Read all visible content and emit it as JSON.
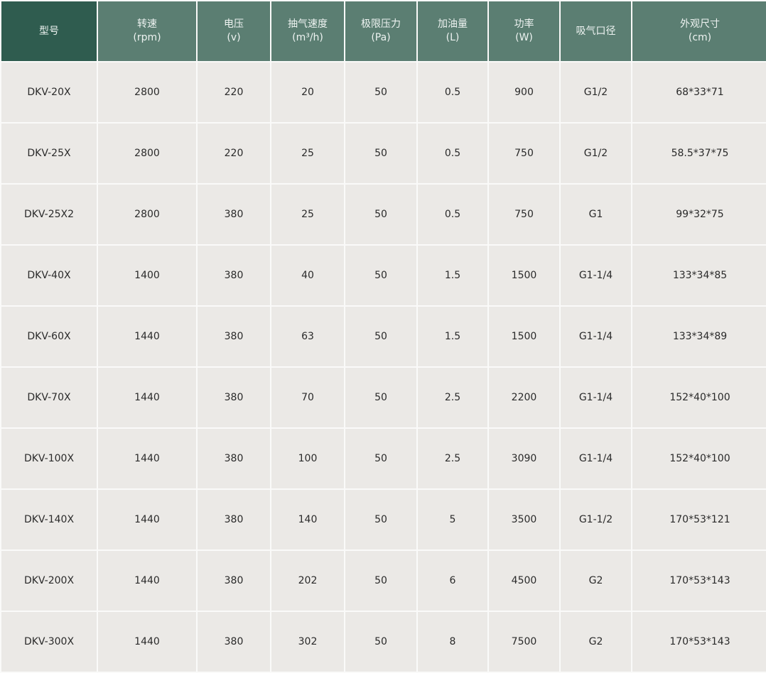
{
  "header_colors": {
    "model": "#2f5c4f",
    "others": "#5b7e72",
    "row_bg": "#ebe9e6"
  },
  "columns": [
    {
      "label": "型号",
      "unit": ""
    },
    {
      "label": "转速",
      "unit": "(rpm)"
    },
    {
      "label": "电压",
      "unit": "(v)"
    },
    {
      "label": "抽气速度",
      "unit": "(m³/h)"
    },
    {
      "label": "极限压力",
      "unit": "(Pa)"
    },
    {
      "label": "加油量",
      "unit": "(L)"
    },
    {
      "label": "功率",
      "unit": "(W)"
    },
    {
      "label": "吸气口径",
      "unit": ""
    },
    {
      "label": "外观尺寸",
      "unit": "(cm)"
    }
  ],
  "rows": [
    [
      "DKV-20X",
      "2800",
      "220",
      "20",
      "50",
      "0.5",
      "900",
      "G1/2",
      "68*33*71"
    ],
    [
      "DKV-25X",
      "2800",
      "220",
      "25",
      "50",
      "0.5",
      "750",
      "G1/2",
      "58.5*37*75"
    ],
    [
      "DKV-25X2",
      "2800",
      "380",
      "25",
      "50",
      "0.5",
      "750",
      "G1",
      "99*32*75"
    ],
    [
      "DKV-40X",
      "1400",
      "380",
      "40",
      "50",
      "1.5",
      "1500",
      "G1-1/4",
      "133*34*85"
    ],
    [
      "DKV-60X",
      "1440",
      "380",
      "63",
      "50",
      "1.5",
      "1500",
      "G1-1/4",
      "133*34*89"
    ],
    [
      "DKV-70X",
      "1440",
      "380",
      "70",
      "50",
      "2.5",
      "2200",
      "G1-1/4",
      "152*40*100"
    ],
    [
      "DKV-100X",
      "1440",
      "380",
      "100",
      "50",
      "2.5",
      "3090",
      "G1-1/4",
      "152*40*100"
    ],
    [
      "DKV-140X",
      "1440",
      "380",
      "140",
      "50",
      "5",
      "3500",
      "G1-1/2",
      "170*53*121"
    ],
    [
      "DKV-200X",
      "1440",
      "380",
      "202",
      "50",
      "6",
      "4500",
      "G2",
      "170*53*143"
    ],
    [
      "DKV-300X",
      "1440",
      "380",
      "302",
      "50",
      "8",
      "7500",
      "G2",
      "170*53*143"
    ]
  ]
}
